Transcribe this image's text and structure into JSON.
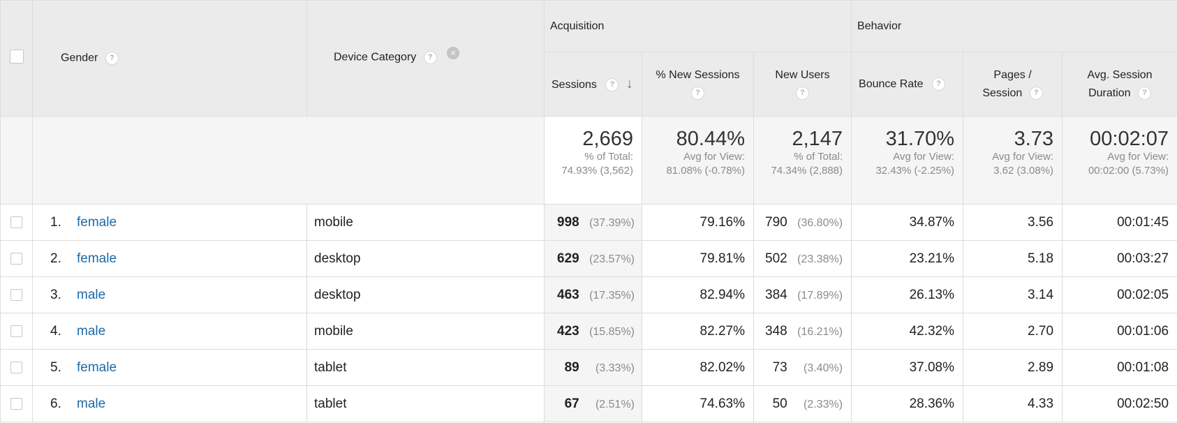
{
  "headers": {
    "gender": "Gender",
    "device_category": "Device Category",
    "acquisition": "Acquisition",
    "behavior": "Behavior",
    "sessions": "Sessions",
    "new_sessions": "% New Sessions",
    "new_users": "New Users",
    "bounce_rate": "Bounce Rate",
    "pages_session_1": "Pages /",
    "pages_session_2": "Session",
    "avg_duration_1": "Avg. Session",
    "avg_duration_2": "Duration"
  },
  "icons": {
    "help": "?",
    "sort": "↓",
    "remove": "×"
  },
  "summary": {
    "sessions": {
      "value": "2,669",
      "l1": "% of Total:",
      "l2": "74.93% (3,562)"
    },
    "new_sessions": {
      "value": "80.44%",
      "l1": "Avg for View:",
      "l2": "81.08% (-0.78%)"
    },
    "new_users": {
      "value": "2,147",
      "l1": "% of Total:",
      "l2": "74.34% (2,888)"
    },
    "bounce_rate": {
      "value": "31.70%",
      "l1": "Avg for View:",
      "l2": "32.43% (-2.25%)"
    },
    "pages_session": {
      "value": "3.73",
      "l1": "Avg for View:",
      "l2": "3.62 (3.08%)"
    },
    "avg_duration": {
      "value": "00:02:07",
      "l1": "Avg for View:",
      "l2": "00:02:00 (5.73%)"
    }
  },
  "rows": [
    {
      "idx": "1.",
      "gender": "female",
      "device": "mobile",
      "sessions": "998",
      "sessions_pct": "(37.39%)",
      "new_sessions": "79.16%",
      "new_users": "790",
      "new_users_pct": "(36.80%)",
      "bounce": "34.87%",
      "pages": "3.56",
      "duration": "00:01:45"
    },
    {
      "idx": "2.",
      "gender": "female",
      "device": "desktop",
      "sessions": "629",
      "sessions_pct": "(23.57%)",
      "new_sessions": "79.81%",
      "new_users": "502",
      "new_users_pct": "(23.38%)",
      "bounce": "23.21%",
      "pages": "5.18",
      "duration": "00:03:27"
    },
    {
      "idx": "3.",
      "gender": "male",
      "device": "desktop",
      "sessions": "463",
      "sessions_pct": "(17.35%)",
      "new_sessions": "82.94%",
      "new_users": "384",
      "new_users_pct": "(17.89%)",
      "bounce": "26.13%",
      "pages": "3.14",
      "duration": "00:02:05"
    },
    {
      "idx": "4.",
      "gender": "male",
      "device": "mobile",
      "sessions": "423",
      "sessions_pct": "(15.85%)",
      "new_sessions": "82.27%",
      "new_users": "348",
      "new_users_pct": "(16.21%)",
      "bounce": "42.32%",
      "pages": "2.70",
      "duration": "00:01:06"
    },
    {
      "idx": "5.",
      "gender": "female",
      "device": "tablet",
      "sessions": "89",
      "sessions_pct": "(3.33%)",
      "new_sessions": "82.02%",
      "new_users": "73",
      "new_users_pct": "(3.40%)",
      "bounce": "37.08%",
      "pages": "2.89",
      "duration": "00:01:08"
    },
    {
      "idx": "6.",
      "gender": "male",
      "device": "tablet",
      "sessions": "67",
      "sessions_pct": "(2.51%)",
      "new_sessions": "74.63%",
      "new_users": "50",
      "new_users_pct": "(2.33%)",
      "bounce": "28.36%",
      "pages": "4.33",
      "duration": "00:02:50"
    }
  ]
}
